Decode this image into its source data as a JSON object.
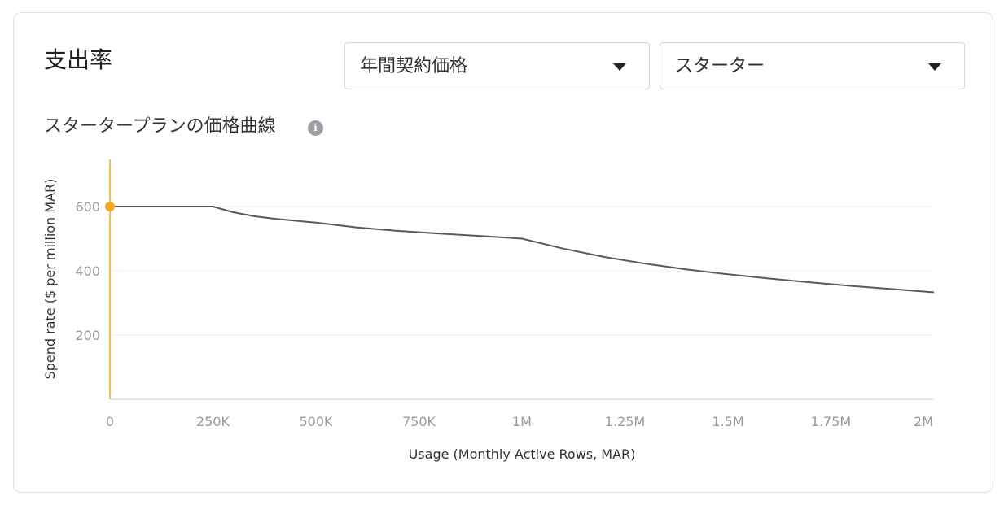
{
  "header": {
    "title": "支出率"
  },
  "controls": {
    "contract_select": {
      "value": "年間契約価格"
    },
    "plan_select": {
      "value": "スターター"
    }
  },
  "chart_section": {
    "subtitle": "スタータープランの価格曲線",
    "info_icon_glyph": "i"
  },
  "colors": {
    "line": "#5a5a5a",
    "marker": "#f5a623",
    "grid": "#f2f2f2",
    "axis": "#dddddd"
  },
  "chart_data": {
    "type": "line",
    "xlabel": "Usage (Monthly Active Rows, MAR)",
    "ylabel": "Spend rate ($ per million MAR)",
    "xlim": [
      0,
      2000000
    ],
    "ylim": [
      0,
      750
    ],
    "grid": true,
    "x_ticks": [
      {
        "value": 0,
        "label": "0"
      },
      {
        "value": 250000,
        "label": "250K"
      },
      {
        "value": 500000,
        "label": "500K"
      },
      {
        "value": 750000,
        "label": "750K"
      },
      {
        "value": 1000000,
        "label": "1M"
      },
      {
        "value": 1250000,
        "label": "1.25M"
      },
      {
        "value": 1500000,
        "label": "1.5M"
      },
      {
        "value": 1750000,
        "label": "1.75M"
      },
      {
        "value": 2000000,
        "label": "2M"
      }
    ],
    "y_ticks": [
      {
        "value": 200,
        "label": "200"
      },
      {
        "value": 400,
        "label": "400"
      },
      {
        "value": 600,
        "label": "600"
      }
    ],
    "series": [
      {
        "x": [
          0,
          250000,
          300000,
          350000,
          400000,
          500000,
          600000,
          700000,
          800000,
          900000,
          1000000,
          1100000,
          1200000,
          1300000,
          1400000,
          1500000,
          1600000,
          1700000,
          1800000,
          1900000,
          2000000
        ],
        "values": [
          600,
          600,
          582,
          570,
          562,
          550,
          535,
          524,
          516,
          508,
          500,
          469,
          443,
          422,
          404,
          389,
          376,
          364,
          353,
          343,
          333
        ]
      }
    ],
    "highlight_point": {
      "x": 0,
      "y": 600
    }
  }
}
